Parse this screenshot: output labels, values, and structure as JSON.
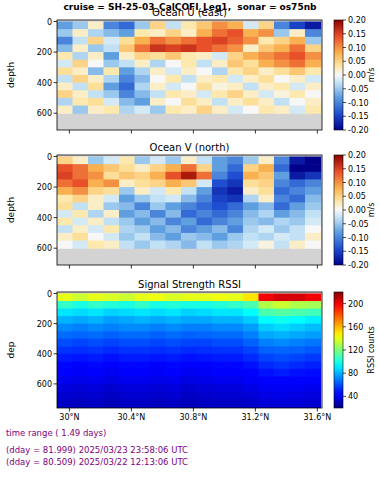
{
  "figure": {
    "title": "cruise = SH-25-03_CalCOFI_Leg1,  sonar = os75nb",
    "footer": [
      "time range ( 1.49 days)",
      "(dday = 81.999) 2025/03/23 23:58:06 UTC",
      "(dday = 80.509) 2025/03/22 12:13:06 UTC"
    ]
  },
  "chart_data": [
    {
      "type": "heatmap",
      "title": "Ocean U (east)",
      "ylabel": "depth",
      "xlim": [
        29.92,
        31.63
      ],
      "ylim": [
        710,
        -10
      ],
      "xticks": [
        30,
        30.4,
        30.8,
        31.2,
        31.6
      ],
      "yticks": [
        0,
        200,
        400,
        600
      ],
      "tick_labels": "y",
      "x": [
        29.97,
        30.07,
        30.17,
        30.27,
        30.37,
        30.47,
        30.57,
        30.67,
        30.77,
        30.87,
        30.97,
        31.07,
        31.17,
        31.27,
        31.37,
        31.47,
        31.57
      ],
      "y": [
        25,
        75,
        125,
        175,
        225,
        275,
        325,
        375,
        425,
        475,
        525,
        575
      ],
      "values": [
        [
          -0.08,
          -0.05,
          0.02,
          -0.1,
          -0.12,
          -0.05,
          0.05,
          -0.03,
          0.03,
          0.06,
          0.1,
          0.08,
          -0.02,
          0.05,
          -0.1,
          -0.15,
          -0.18
        ],
        [
          -0.05,
          0.02,
          -0.04,
          -0.06,
          -0.08,
          0.03,
          0.02,
          0.05,
          0.02,
          0.08,
          0.12,
          0.14,
          0.08,
          0.1,
          -0.05,
          0.02,
          -0.1
        ],
        [
          -0.1,
          -0.03,
          0.05,
          -0.02,
          0.04,
          0.08,
          0.12,
          0.1,
          0.12,
          0.14,
          0.15,
          0.13,
          0.1,
          0.03,
          0.05,
          0.08,
          -0.05
        ],
        [
          -0.06,
          0.02,
          -0.05,
          -0.03,
          0.06,
          0.12,
          0.16,
          0.15,
          0.16,
          0.14,
          0.12,
          0.1,
          0.02,
          0.06,
          0.08,
          0.12,
          0.05
        ],
        [
          0.03,
          -0.04,
          0.02,
          -0.08,
          0.02,
          0.05,
          0.04,
          0.06,
          0.03,
          0.02,
          -0.02,
          0.05,
          0.08,
          0.1,
          0.12,
          0.14,
          0.1
        ],
        [
          -0.02,
          0.05,
          0.0,
          -0.05,
          -0.03,
          0.02,
          -0.04,
          0.0,
          0.03,
          -0.03,
          0.02,
          0.06,
          0.04,
          0.08,
          0.1,
          0.12,
          0.08
        ],
        [
          0.04,
          0.02,
          -0.06,
          0.03,
          -0.08,
          -0.04,
          0.02,
          -0.02,
          0.02,
          0.0,
          -0.04,
          0.03,
          0.05,
          0.02,
          0.04,
          0.06,
          0.03
        ],
        [
          -0.03,
          0.05,
          0.02,
          -0.04,
          -0.1,
          -0.06,
          0.0,
          0.03,
          -0.03,
          0.02,
          0.03,
          -0.02,
          0.02,
          0.04,
          0.0,
          0.02,
          -0.02
        ],
        [
          0.02,
          -0.03,
          0.04,
          -0.08,
          -0.12,
          -0.04,
          0.02,
          -0.02,
          0.0,
          0.04,
          0.01,
          0.02,
          -0.03,
          0.02,
          0.03,
          -0.02,
          0.02
        ],
        [
          0.05,
          0.02,
          -0.03,
          -0.05,
          -0.1,
          -0.06,
          -0.03,
          0.03,
          0.02,
          -0.02,
          0.03,
          0.05,
          0.02,
          -0.02,
          0.01,
          0.03,
          0.0
        ],
        [
          -0.04,
          0.03,
          0.04,
          -0.02,
          -0.06,
          -0.08,
          0.02,
          0.0,
          0.04,
          0.02,
          -0.03,
          0.02,
          0.04,
          0.02,
          -0.03,
          0.0,
          0.02
        ],
        [
          0.02,
          -0.05,
          0.02,
          0.03,
          -0.04,
          -0.02,
          -0.05,
          0.03,
          0.02,
          0.05,
          0.02,
          -0.02,
          0.0,
          0.03,
          0.02,
          -0.02,
          0.03
        ]
      ],
      "clim": [
        -0.2,
        0.2
      ],
      "clabel": "m/s",
      "cticks": [
        {
          "value": -0.2,
          "label": "-0.20"
        },
        {
          "value": -0.15,
          "label": "-0.15"
        },
        {
          "value": -0.1,
          "label": "-0.10"
        },
        {
          "value": -0.05,
          "label": "-0.05"
        },
        {
          "value": 0,
          "label": "0.00"
        },
        {
          "value": 0.05,
          "label": "0.05"
        },
        {
          "value": 0.1,
          "label": "0.10"
        },
        {
          "value": 0.15,
          "label": "0.15"
        },
        {
          "value": 0.2,
          "label": "0.20"
        }
      ]
    },
    {
      "type": "heatmap",
      "title": "Ocean V (north)",
      "ylabel": "depth",
      "xlim": [
        29.92,
        31.63
      ],
      "ylim": [
        710,
        -10
      ],
      "xticks": [
        30,
        30.4,
        30.8,
        31.2,
        31.6
      ],
      "yticks": [
        0,
        200,
        400,
        600
      ],
      "tick_labels": "y",
      "x": [
        29.97,
        30.07,
        30.17,
        30.27,
        30.37,
        30.47,
        30.57,
        30.67,
        30.77,
        30.87,
        30.97,
        31.07,
        31.17,
        31.27,
        31.37,
        31.47,
        31.57
      ],
      "y": [
        25,
        75,
        125,
        175,
        225,
        275,
        325,
        375,
        425,
        475,
        525,
        575
      ],
      "values": [
        [
          0.05,
          0.02,
          -0.05,
          -0.02,
          0.03,
          -0.05,
          -0.02,
          -0.05,
          0.02,
          -0.03,
          -0.08,
          -0.1,
          -0.05,
          0.02,
          -0.1,
          -0.18,
          -0.2
        ],
        [
          0.14,
          0.12,
          0.08,
          0.06,
          0.04,
          0.02,
          0.05,
          0.08,
          0.12,
          0.05,
          -0.08,
          -0.12,
          0.05,
          0.08,
          -0.12,
          -0.2,
          -0.2
        ],
        [
          0.15,
          0.12,
          0.1,
          0.04,
          0.06,
          0.05,
          0.08,
          0.14,
          0.18,
          0.12,
          -0.1,
          -0.14,
          0.08,
          0.06,
          -0.08,
          -0.18,
          -0.16
        ],
        [
          0.12,
          0.14,
          0.08,
          0.1,
          0.02,
          0.04,
          0.05,
          0.08,
          0.06,
          -0.02,
          -0.14,
          -0.16,
          0.04,
          0.05,
          -0.1,
          -0.12,
          -0.1
        ],
        [
          0.08,
          0.1,
          0.05,
          0.04,
          -0.05,
          0.02,
          -0.02,
          0.03,
          -0.03,
          -0.08,
          -0.16,
          -0.18,
          0.02,
          0.04,
          -0.12,
          -0.1,
          -0.08
        ],
        [
          0.03,
          0.05,
          0.02,
          -0.02,
          -0.08,
          -0.05,
          -0.03,
          -0.02,
          -0.06,
          -0.1,
          -0.15,
          -0.16,
          -0.04,
          0.02,
          -0.1,
          -0.12,
          -0.06
        ],
        [
          0.04,
          -0.03,
          0.02,
          -0.05,
          -0.06,
          -0.1,
          -0.05,
          -0.08,
          -0.1,
          -0.12,
          -0.14,
          -0.12,
          -0.08,
          -0.06,
          -0.12,
          -0.08,
          -0.05
        ],
        [
          -0.02,
          0.03,
          -0.04,
          0.02,
          -0.08,
          -0.06,
          -0.1,
          -0.06,
          -0.12,
          -0.1,
          -0.12,
          -0.1,
          -0.06,
          -0.04,
          -0.08,
          -0.06,
          -0.03
        ],
        [
          0.03,
          -0.02,
          0.02,
          -0.03,
          -0.05,
          -0.08,
          -0.06,
          -0.1,
          -0.08,
          -0.12,
          -0.1,
          -0.08,
          -0.05,
          -0.06,
          -0.04,
          -0.05,
          -0.02
        ],
        [
          -0.03,
          0.02,
          -0.02,
          0.03,
          -0.04,
          -0.05,
          -0.08,
          -0.06,
          -0.1,
          -0.08,
          -0.06,
          -0.1,
          -0.04,
          -0.02,
          -0.05,
          -0.03,
          0.0
        ],
        [
          0.02,
          0.04,
          0.0,
          -0.02,
          -0.05,
          -0.03,
          -0.06,
          -0.08,
          -0.05,
          -0.06,
          -0.08,
          -0.05,
          -0.03,
          -0.04,
          -0.02,
          -0.03,
          0.02
        ],
        [
          0.0,
          -0.02,
          0.03,
          0.02,
          -0.03,
          -0.05,
          -0.03,
          -0.04,
          -0.06,
          -0.03,
          -0.05,
          -0.04,
          -0.02,
          0.01,
          -0.03,
          0.02,
          0.0
        ]
      ],
      "clim": [
        -0.2,
        0.2
      ],
      "clabel": "m/s",
      "cticks": [
        {
          "value": -0.2,
          "label": "-0.20"
        },
        {
          "value": -0.15,
          "label": "-0.15"
        },
        {
          "value": -0.1,
          "label": "-0.10"
        },
        {
          "value": -0.05,
          "label": "-0.05"
        },
        {
          "value": 0,
          "label": "0.00"
        },
        {
          "value": 0.05,
          "label": "0.05"
        },
        {
          "value": 0.1,
          "label": "0.10"
        },
        {
          "value": 0.15,
          "label": "0.15"
        },
        {
          "value": 0.2,
          "label": "0.20"
        }
      ]
    },
    {
      "type": "heatmap",
      "title": "Signal Strength RSSI",
      "ylabel": "dep",
      "xlim": [
        29.92,
        31.63
      ],
      "ylim": [
        760,
        -10
      ],
      "xticks": [
        {
          "value": 30,
          "label": "30°N"
        },
        {
          "value": 30.4,
          "label": "30.4°N"
        },
        {
          "value": 30.8,
          "label": "30.8°N"
        },
        {
          "value": 31.2,
          "label": "31.2°N"
        },
        {
          "value": 31.6,
          "label": "31.6°N"
        }
      ],
      "yticks": [
        0,
        200,
        400,
        600
      ],
      "x": [
        29.97,
        30.07,
        30.17,
        30.27,
        30.37,
        30.47,
        30.57,
        30.67,
        30.77,
        30.87,
        30.97,
        31.07,
        31.17,
        31.27,
        31.37,
        31.47,
        31.57
      ],
      "y": [
        25,
        75,
        125,
        175,
        225,
        275,
        325,
        375,
        425,
        475,
        525,
        575,
        625,
        675,
        725,
        775
      ],
      "values": [
        [
          140,
          135,
          140,
          138,
          135,
          140,
          142,
          138,
          140,
          140,
          142,
          140,
          150,
          200,
          205,
          205,
          200
        ],
        [
          105,
          100,
          105,
          102,
          100,
          105,
          100,
          102,
          100,
          100,
          102,
          105,
          110,
          130,
          135,
          130,
          128
        ],
        [
          90,
          88,
          90,
          86,
          88,
          90,
          88,
          90,
          86,
          88,
          90,
          90,
          95,
          110,
          112,
          110,
          108
        ],
        [
          80,
          78,
          80,
          76,
          78,
          80,
          78,
          80,
          78,
          78,
          80,
          80,
          85,
          95,
          98,
          95,
          92
        ],
        [
          72,
          70,
          72,
          70,
          72,
          72,
          70,
          72,
          70,
          70,
          72,
          72,
          76,
          85,
          88,
          85,
          82
        ],
        [
          66,
          65,
          66,
          64,
          66,
          66,
          64,
          66,
          64,
          65,
          66,
          66,
          70,
          78,
          80,
          78,
          76
        ],
        [
          60,
          58,
          60,
          58,
          60,
          60,
          58,
          60,
          58,
          58,
          60,
          60,
          64,
          70,
          72,
          70,
          68
        ],
        [
          55,
          54,
          55,
          53,
          55,
          55,
          54,
          55,
          53,
          54,
          55,
          55,
          58,
          64,
          65,
          64,
          62
        ],
        [
          50,
          49,
          50,
          48,
          50,
          50,
          49,
          50,
          48,
          49,
          50,
          50,
          53,
          58,
          60,
          58,
          56
        ],
        [
          46,
          45,
          46,
          44,
          46,
          46,
          45,
          46,
          44,
          45,
          46,
          46,
          48,
          53,
          55,
          53,
          51
        ],
        [
          42,
          41,
          42,
          40,
          42,
          42,
          41,
          42,
          40,
          41,
          42,
          42,
          44,
          48,
          50,
          48,
          47
        ],
        [
          39,
          38,
          39,
          37,
          39,
          39,
          38,
          39,
          37,
          38,
          39,
          39,
          41,
          44,
          45,
          44,
          43
        ],
        [
          36,
          35,
          36,
          34,
          36,
          36,
          35,
          36,
          34,
          35,
          36,
          36,
          38,
          40,
          41,
          40,
          39
        ],
        [
          34,
          33,
          34,
          32,
          34,
          34,
          33,
          34,
          32,
          33,
          34,
          34,
          35,
          37,
          38,
          37,
          36
        ],
        [
          32,
          31,
          32,
          30,
          32,
          32,
          31,
          32,
          30,
          31,
          32,
          32,
          33,
          35,
          35,
          35,
          34
        ],
        [
          30,
          30,
          30,
          29,
          30,
          30,
          30,
          30,
          29,
          30,
          30,
          30,
          31,
          33,
          33,
          33,
          32
        ]
      ],
      "clim": [
        20,
        220
      ],
      "clabel": "RSSI counts",
      "cticks": [
        40,
        80,
        120,
        160,
        200
      ]
    }
  ]
}
